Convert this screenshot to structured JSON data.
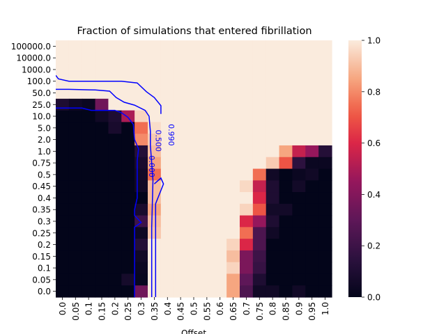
{
  "chart_data": {
    "type": "heatmap",
    "title": "Fraction of simulations that entered fibrillation",
    "xlabel": "Offset",
    "ylabel": "",
    "x_categories": [
      "0.0",
      "0.05",
      "0.1",
      "0.15",
      "0.2",
      "0.25",
      "0.3",
      "0.35",
      "0.4",
      "0.45",
      "0.5",
      "0.55",
      "0.6",
      "0.65",
      "0.7",
      "0.75",
      "0.8",
      "0.85",
      "0.9",
      "0.95",
      "1.0"
    ],
    "y_categories": [
      "100000.0",
      "10000.0",
      "1000.0",
      "100.0",
      "50.0",
      "25.0",
      "10.0",
      "5.0",
      "2.0",
      "1.0",
      "0.75",
      "0.5",
      "0.45",
      "0.4",
      "0.35",
      "0.3",
      "0.25",
      "0.2",
      "0.15",
      "0.1",
      "0.05",
      "0.0"
    ],
    "colorbar": {
      "min": 0.0,
      "max": 1.0,
      "ticks": [
        "0.0",
        "0.2",
        "0.4",
        "0.6",
        "0.8",
        "1.0"
      ],
      "colormap": "rocket"
    },
    "values": [
      [
        1,
        1,
        1,
        1,
        1,
        1,
        1,
        1,
        1,
        1,
        1,
        1,
        1,
        1,
        1,
        1,
        1,
        1,
        1,
        1,
        1
      ],
      [
        1,
        1,
        1,
        1,
        1,
        1,
        1,
        1,
        1,
        1,
        1,
        1,
        1,
        1,
        1,
        1,
        1,
        1,
        1,
        1,
        1
      ],
      [
        1,
        1,
        1,
        1,
        1,
        1,
        1,
        1,
        1,
        1,
        1,
        1,
        1,
        1,
        1,
        1,
        1,
        1,
        1,
        1,
        1
      ],
      [
        1,
        1,
        1,
        1,
        1,
        1,
        1,
        1,
        1,
        1,
        1,
        1,
        1,
        1,
        1,
        1,
        1,
        1,
        1,
        1,
        1
      ],
      [
        1,
        1,
        1,
        1,
        1,
        1,
        1,
        1,
        1,
        1,
        1,
        1,
        1,
        1,
        1,
        1,
        1,
        1,
        1,
        1,
        1
      ],
      [
        0.1,
        0.05,
        0.03,
        0.35,
        1,
        1,
        1,
        1,
        1,
        1,
        1,
        1,
        1,
        1,
        1,
        1,
        1,
        1,
        1,
        1,
        1
      ],
      [
        0,
        0,
        0,
        0.05,
        0.1,
        0.5,
        0.95,
        1,
        1,
        1,
        1,
        1,
        1,
        1,
        1,
        1,
        1,
        1,
        1,
        1,
        1
      ],
      [
        0,
        0,
        0,
        0,
        0.08,
        0,
        0.75,
        0.97,
        1,
        1,
        1,
        1,
        1,
        1,
        1,
        1,
        1,
        1,
        1,
        1,
        1
      ],
      [
        0,
        0,
        0,
        0,
        0,
        0,
        0.8,
        0.93,
        1,
        1,
        1,
        1,
        1,
        1,
        1,
        1,
        1,
        1,
        1,
        1,
        1
      ],
      [
        0,
        0,
        0,
        0,
        0,
        0,
        0.12,
        0.9,
        1,
        1,
        1,
        1,
        1,
        1,
        1,
        1,
        1,
        0.85,
        0.55,
        0.45,
        0.12
      ],
      [
        0,
        0,
        0,
        0,
        0,
        0,
        0.08,
        0.85,
        1,
        1,
        1,
        1,
        1,
        1,
        1,
        1,
        0.93,
        0.7,
        0.15,
        0.03,
        0.03
      ],
      [
        0,
        0,
        0,
        0,
        0,
        0,
        0.06,
        0.75,
        1,
        1,
        1,
        1,
        1,
        1,
        1,
        0.75,
        0.05,
        0,
        0.03,
        0.05,
        0
      ],
      [
        0,
        0,
        0,
        0,
        0,
        0,
        0.05,
        0.9,
        1,
        1,
        1,
        1,
        1,
        1,
        0.96,
        0.55,
        0.1,
        0,
        0.06,
        0,
        0
      ],
      [
        0,
        0,
        0,
        0,
        0,
        0,
        0,
        0.9,
        1,
        1,
        1,
        1,
        1,
        1,
        1,
        0.6,
        0.1,
        0,
        0,
        0,
        0
      ],
      [
        0,
        0,
        0,
        0,
        0,
        0,
        0.08,
        0.85,
        1,
        1,
        1,
        1,
        1,
        1,
        0.95,
        0.7,
        0.06,
        0.06,
        0,
        0,
        0
      ],
      [
        0,
        0,
        0,
        0,
        0,
        0,
        0.2,
        0.9,
        1,
        1,
        1,
        1,
        1,
        1,
        0.6,
        0.45,
        0.1,
        0,
        0,
        0,
        0
      ],
      [
        0,
        0,
        0,
        0,
        0,
        0,
        0.04,
        0.92,
        1,
        1,
        1,
        1,
        1,
        1,
        0.75,
        0.25,
        0.05,
        0,
        0,
        0,
        0
      ],
      [
        0,
        0,
        0,
        0,
        0,
        0,
        0.12,
        1,
        1,
        1,
        1,
        1,
        1,
        0.95,
        0.6,
        0.25,
        0,
        0,
        0,
        0,
        0
      ],
      [
        0,
        0,
        0,
        0,
        0,
        0,
        0.05,
        1,
        1,
        1,
        1,
        1,
        1,
        0.9,
        0.38,
        0.2,
        0,
        0,
        0,
        0,
        0
      ],
      [
        0,
        0,
        0,
        0,
        0,
        0,
        0.03,
        1,
        1,
        1,
        1,
        1,
        1,
        0.95,
        0.38,
        0.18,
        0,
        0,
        0,
        0,
        0
      ],
      [
        0,
        0,
        0,
        0,
        0,
        0.07,
        0.02,
        1,
        1,
        1,
        1,
        1,
        1,
        0.85,
        0.3,
        0.1,
        0,
        0,
        0,
        0,
        0
      ],
      [
        0,
        0,
        0,
        0,
        0,
        0,
        0.35,
        1,
        1,
        1,
        1,
        1,
        1,
        0.85,
        0.25,
        0.05,
        0.05,
        0,
        0.05,
        0,
        0
      ]
    ],
    "contours": [
      {
        "label": "0.000",
        "color": "#0000ff",
        "points": [
          [
            0,
            5.8
          ],
          [
            1,
            5.8
          ],
          [
            2,
            5.8
          ],
          [
            2.7,
            6.0
          ],
          [
            4.5,
            6.0
          ],
          [
            5,
            6.2
          ],
          [
            5.5,
            6.6
          ],
          [
            5.9,
            7.2
          ],
          [
            6,
            8.5
          ],
          [
            6.3,
            9.3
          ],
          [
            6.2,
            10.3
          ],
          [
            6.2,
            13.5
          ],
          [
            6.0,
            14.5
          ],
          [
            6.0,
            15.0
          ],
          [
            6.5,
            15.6
          ],
          [
            6.0,
            16.0
          ],
          [
            6.0,
            22.0
          ]
        ]
      },
      {
        "label": "0.500",
        "color": "#0000ff",
        "points": [
          [
            0,
            4.2
          ],
          [
            1,
            4.2
          ],
          [
            3,
            4.25
          ],
          [
            4.1,
            4.35
          ],
          [
            4.6,
            4.9
          ],
          [
            5.2,
            5.3
          ],
          [
            6,
            5.55
          ],
          [
            6.8,
            6.0
          ],
          [
            7.1,
            6.5
          ],
          [
            7.2,
            7.8
          ],
          [
            7.2,
            9.0
          ],
          [
            7.4,
            12.0
          ],
          [
            7.3,
            16.0
          ],
          [
            7.3,
            22.0
          ]
        ]
      },
      {
        "label": "0.990",
        "color": "#0000ff",
        "points": [
          [
            0,
            3.0
          ],
          [
            0.2,
            3.3
          ],
          [
            1,
            3.5
          ],
          [
            3,
            3.5
          ],
          [
            5,
            3.5
          ],
          [
            6.2,
            3.65
          ],
          [
            6.9,
            4.4
          ],
          [
            7.5,
            4.9
          ],
          [
            8.0,
            5.6
          ],
          [
            8.0,
            6.3
          ]
        ]
      },
      {
        "label": "",
        "color": "#0000ff",
        "points": [
          [
            7.5,
            12.3
          ],
          [
            8.0,
            11.8
          ],
          [
            8.2,
            12.3
          ],
          [
            7.6,
            14.0
          ],
          [
            7.6,
            22.0
          ]
        ]
      }
    ]
  }
}
